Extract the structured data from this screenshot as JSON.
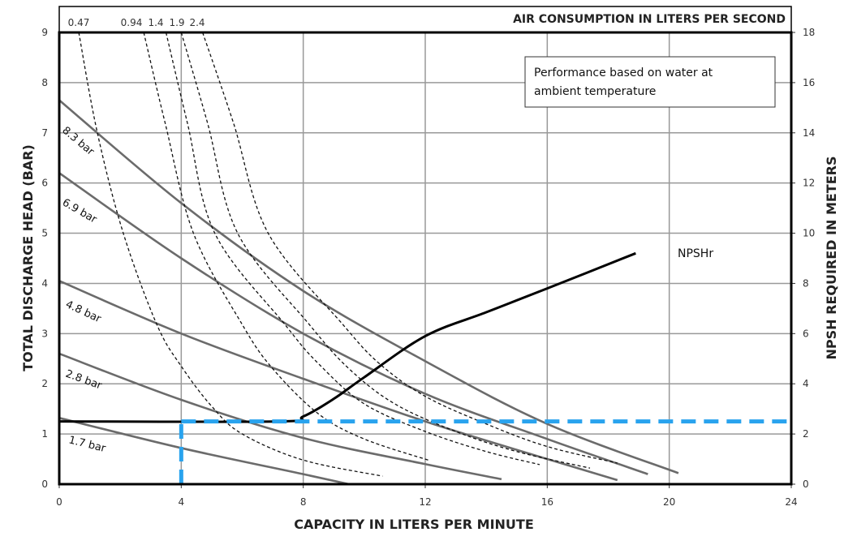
{
  "chart_data": {
    "type": "line",
    "title": "",
    "top_axis_label": "AIR CONSUMPTION IN LITERS PER SECOND",
    "xlabel": "CAPACITY IN LITERS PER MINUTE",
    "ylabel": "TOTAL DISCHARGE HEAD (BAR)",
    "y2label": "NPSH REQUIRED IN METERS",
    "xlim": [
      0,
      24
    ],
    "ylim": [
      0,
      9
    ],
    "y2lim": [
      0,
      18
    ],
    "grid": true,
    "x_ticks": [
      0,
      4,
      8,
      12,
      16,
      20,
      24
    ],
    "y_ticks": [
      0,
      1,
      2,
      3,
      4,
      5,
      6,
      7,
      8,
      9
    ],
    "y2_ticks": [
      0,
      2,
      4,
      6,
      8,
      10,
      12,
      14,
      16,
      18
    ],
    "annotation": [
      "Performance based on water at",
      "ambient temperature"
    ],
    "pressure_series": [
      {
        "name": "8.3 bar",
        "points": [
          [
            0,
            7.65
          ],
          [
            4,
            5.6
          ],
          [
            8,
            3.85
          ],
          [
            12,
            2.45
          ],
          [
            16,
            1.2
          ],
          [
            20.3,
            0.22
          ]
        ]
      },
      {
        "name": "6.9 bar",
        "points": [
          [
            0,
            6.2
          ],
          [
            4,
            4.5
          ],
          [
            8,
            3.0
          ],
          [
            12,
            1.8
          ],
          [
            16,
            0.9
          ],
          [
            19.3,
            0.2
          ]
        ]
      },
      {
        "name": "4.8 bar",
        "points": [
          [
            0,
            4.05
          ],
          [
            4,
            3.0
          ],
          [
            8,
            2.1
          ],
          [
            12,
            1.25
          ],
          [
            16,
            0.5
          ],
          [
            18.3,
            0.08
          ]
        ]
      },
      {
        "name": "2.8 bar",
        "points": [
          [
            0,
            2.6
          ],
          [
            4,
            1.68
          ],
          [
            8,
            0.92
          ],
          [
            12,
            0.4
          ],
          [
            14.5,
            0.1
          ]
        ]
      },
      {
        "name": "1.7 bar",
        "points": [
          [
            0,
            1.32
          ],
          [
            4,
            0.72
          ],
          [
            8,
            0.2
          ],
          [
            9.5,
            0
          ]
        ]
      }
    ],
    "air_series": [
      {
        "name": "0.47",
        "points": [
          [
            0.64,
            9
          ],
          [
            1.25,
            7
          ],
          [
            2.1,
            5
          ],
          [
            3.2,
            3.18
          ],
          [
            4,
            2.35
          ],
          [
            5,
            1.55
          ],
          [
            6,
            1.0
          ],
          [
            8,
            0.48
          ],
          [
            10.6,
            0.16
          ]
        ]
      },
      {
        "name": "0.94",
        "points": [
          [
            2.77,
            9
          ],
          [
            3.47,
            7.2
          ],
          [
            4.4,
            5
          ],
          [
            6.0,
            3.18
          ],
          [
            7.0,
            2.3
          ],
          [
            8.5,
            1.4
          ],
          [
            10,
            0.9
          ],
          [
            12.15,
            0.47
          ]
        ]
      },
      {
        "name": "1.4",
        "points": [
          [
            3.5,
            9
          ],
          [
            4.2,
            7.2
          ],
          [
            5.1,
            5
          ],
          [
            7.4,
            3.18
          ],
          [
            8.5,
            2.4
          ],
          [
            10,
            1.6
          ],
          [
            12,
            1.05
          ],
          [
            14,
            0.65
          ],
          [
            15.75,
            0.39
          ]
        ]
      },
      {
        "name": "1.9",
        "points": [
          [
            4.0,
            9
          ],
          [
            4.86,
            7.2
          ],
          [
            5.85,
            5
          ],
          [
            8.2,
            3.18
          ],
          [
            9.5,
            2.3
          ],
          [
            11,
            1.6
          ],
          [
            13,
            1.05
          ],
          [
            15,
            0.65
          ],
          [
            17.4,
            0.32
          ]
        ]
      },
      {
        "name": "2.4",
        "points": [
          [
            4.7,
            9
          ],
          [
            5.71,
            7.2
          ],
          [
            6.85,
            5
          ],
          [
            9.3,
            3.18
          ],
          [
            10.5,
            2.4
          ],
          [
            12,
            1.75
          ],
          [
            14,
            1.2
          ],
          [
            16,
            0.75
          ],
          [
            18.3,
            0.42
          ]
        ]
      }
    ],
    "npsh_series": {
      "name": "NPSHr",
      "axis": "right",
      "points": [
        [
          0,
          2.5
        ],
        [
          7.2,
          2.5
        ],
        [
          8,
          2.7
        ],
        [
          9,
          3.4
        ],
        [
          10,
          4.26
        ],
        [
          12,
          5.9
        ],
        [
          14,
          6.85
        ],
        [
          16,
          7.8
        ],
        [
          18.9,
          9.2
        ]
      ]
    },
    "reference_lines": {
      "color": "#29a3ee",
      "capacity": 4,
      "head": 1.25
    }
  },
  "colors": {
    "pressure": "#6b6b6b",
    "air": "#111111",
    "npsh": "#000000",
    "grid": "#999999",
    "reference": "#29a3ee"
  }
}
